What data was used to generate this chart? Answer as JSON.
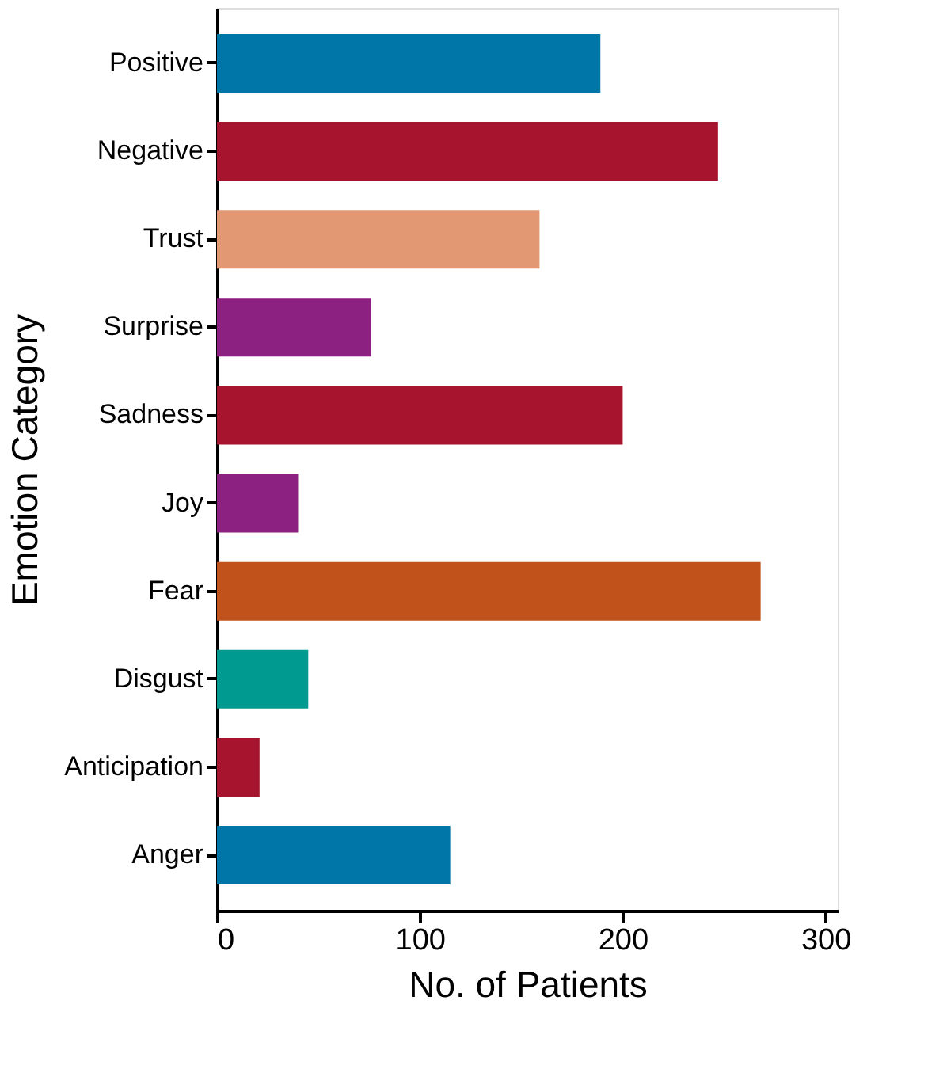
{
  "chart_data": {
    "type": "bar",
    "orientation": "horizontal",
    "xlabel": "No. of Patients",
    "ylabel": "Emotion Category",
    "categories": [
      "Positive",
      "Negative",
      "Trust",
      "Surprise",
      "Sadness",
      "Joy",
      "Fear",
      "Disgust",
      "Anticipation",
      "Anger"
    ],
    "values": [
      189,
      247,
      159,
      76,
      200,
      40,
      268,
      45,
      21,
      115
    ],
    "colors": [
      "#0075a8",
      "#a6152d",
      "#e39874",
      "#8c2181",
      "#a6152d",
      "#8c2181",
      "#c1521b",
      "#009a91",
      "#a6152d",
      "#0075a8"
    ],
    "xlim": [
      0,
      306
    ],
    "xticks": [
      0,
      100,
      200,
      300
    ],
    "grid": false
  }
}
